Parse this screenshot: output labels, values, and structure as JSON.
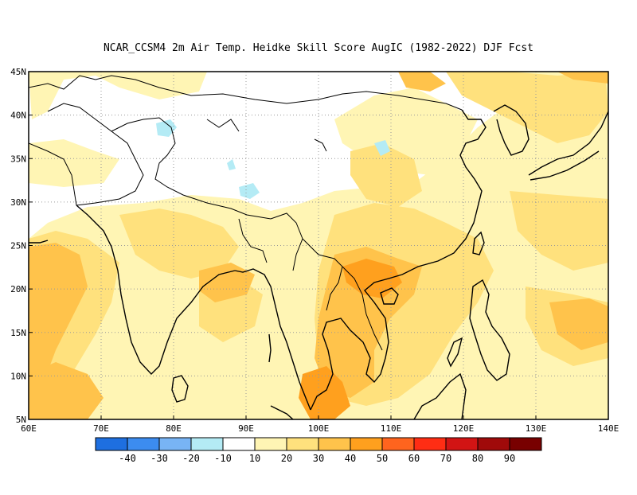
{
  "title": "NCAR_CCSM4  2m Air Temp. Heidke Skill Score AugIC (1982-2022) DJF Fcst",
  "map": {
    "lon_range": [
      60,
      140
    ],
    "lat_range": [
      5,
      45
    ],
    "lon_ticks": [
      "60E",
      "70E",
      "80E",
      "90E",
      "100E",
      "110E",
      "120E",
      "130E",
      "140E"
    ],
    "lat_ticks": [
      "45N",
      "40N",
      "35N",
      "30N",
      "25N",
      "20N",
      "15N",
      "10N",
      "5N"
    ],
    "gridlines": "dotted"
  },
  "colorbar": {
    "labels": [
      "-40",
      "-30",
      "-20",
      "-10",
      "10",
      "20",
      "30",
      "40",
      "50",
      "60",
      "70",
      "80",
      "90"
    ],
    "colors": [
      "#1e6fe0",
      "#3c8cf0",
      "#78b4f5",
      "#b4ebf5",
      "#ffffff",
      "#fff5b4",
      "#ffe17d",
      "#ffc34b",
      "#ffa01e",
      "#ff641e",
      "#ff2d14",
      "#d21414",
      "#a00a0a",
      "#780000"
    ]
  },
  "palette": {
    "land_outline": "#000000",
    "grid": "#999999"
  }
}
